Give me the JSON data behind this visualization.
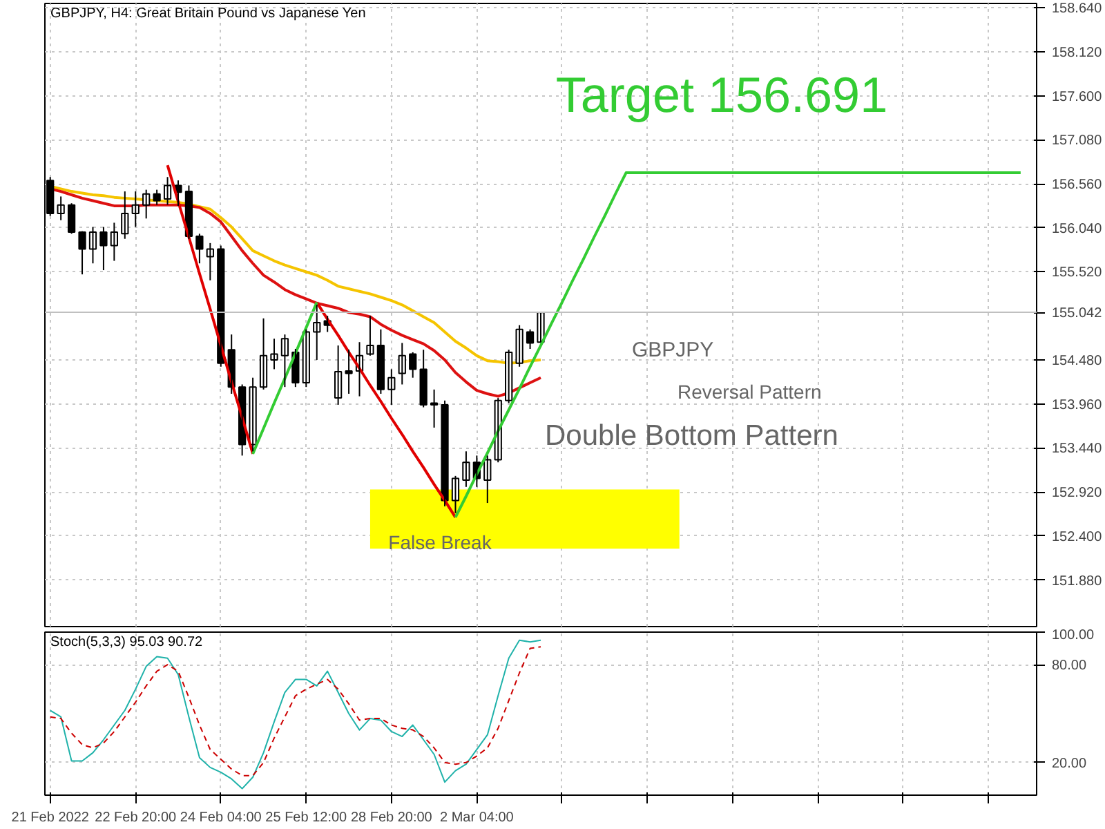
{
  "chart_data": [
    {
      "type": "candlestick",
      "title": "GBPJPY, H4:  Great Britain Pound vs Japanese Yen",
      "categories": [
        null,
        null,
        null,
        null,
        null,
        null,
        null,
        null,
        null,
        null,
        null,
        null,
        null,
        null,
        null,
        null,
        null,
        null,
        null,
        null,
        null,
        null,
        null,
        null,
        null,
        null,
        null,
        null,
        null,
        null,
        null,
        null,
        null,
        null,
        null,
        null,
        null,
        null,
        null,
        null,
        null,
        null,
        null,
        null,
        null,
        null,
        null,
        null,
        null,
        null,
        null,
        null,
        null,
        null,
        null,
        null,
        null,
        null,
        null,
        null,
        null,
        null,
        null,
        null,
        null,
        null,
        null,
        null,
        null,
        null,
        null,
        null,
        null,
        null,
        null,
        null,
        null,
        null,
        null,
        null,
        null,
        null,
        null,
        null,
        null,
        null,
        null,
        null,
        null,
        null,
        null,
        null,
        null
      ],
      "ohlc": [
        [
          156.6,
          156.64,
          156.18,
          156.21
        ],
        [
          156.21,
          156.41,
          156.13,
          156.31
        ],
        [
          156.31,
          156.33,
          155.97,
          155.99
        ],
        [
          155.99,
          156.0,
          155.49,
          155.79
        ],
        [
          155.79,
          156.05,
          155.62,
          155.99
        ],
        [
          155.99,
          156.05,
          155.54,
          155.83
        ],
        [
          155.83,
          156.1,
          155.65,
          155.99
        ],
        [
          155.97,
          156.47,
          155.91,
          156.21
        ],
        [
          156.21,
          156.47,
          156.05,
          156.31
        ],
        [
          156.31,
          156.49,
          156.15,
          156.44
        ],
        [
          156.44,
          156.49,
          156.31,
          156.36
        ],
        [
          156.38,
          156.64,
          156.31,
          156.54
        ],
        [
          156.54,
          156.6,
          156.3,
          156.46
        ],
        [
          156.47,
          156.54,
          155.91,
          155.94
        ],
        [
          155.94,
          155.97,
          155.62,
          155.79
        ],
        [
          155.7,
          155.86,
          155.42,
          155.79
        ],
        [
          155.79,
          155.83,
          154.4,
          154.44
        ],
        [
          154.6,
          154.78,
          154.08,
          154.16
        ],
        [
          154.16,
          154.19,
          153.35,
          153.48
        ],
        [
          153.48,
          154.27,
          153.4,
          154.16
        ],
        [
          154.16,
          154.97,
          154.13,
          154.53
        ],
        [
          154.48,
          154.73,
          154.37,
          154.55
        ],
        [
          154.53,
          154.78,
          154.16,
          154.73
        ],
        [
          154.57,
          154.61,
          154.16,
          154.21
        ],
        [
          154.21,
          154.84,
          154.16,
          154.81
        ],
        [
          154.81,
          155.13,
          154.48,
          154.92
        ],
        [
          154.94,
          155.0,
          154.81,
          154.89
        ],
        [
          154.03,
          154.65,
          153.95,
          154.34
        ],
        [
          154.35,
          154.6,
          154.08,
          154.32
        ],
        [
          154.35,
          154.69,
          154.05,
          154.53
        ],
        [
          154.55,
          155.0,
          154.53,
          154.65
        ],
        [
          154.65,
          154.84,
          154.08,
          154.13
        ],
        [
          154.13,
          154.37,
          153.95,
          154.27
        ],
        [
          154.32,
          154.68,
          154.19,
          154.53
        ],
        [
          154.55,
          154.57,
          154.27,
          154.37
        ],
        [
          154.37,
          154.6,
          153.92,
          153.95
        ],
        [
          153.97,
          154.13,
          153.68,
          153.95
        ],
        [
          153.95,
          154.0,
          152.75,
          152.82
        ],
        [
          152.82,
          153.11,
          152.67,
          153.08
        ],
        [
          153.06,
          153.4,
          152.98,
          153.27
        ],
        [
          153.27,
          153.35,
          152.98,
          153.08
        ],
        [
          153.06,
          153.35,
          152.79,
          153.3
        ],
        [
          153.3,
          154.03,
          153.27,
          154.0
        ],
        [
          154.0,
          154.6,
          153.97,
          154.57
        ],
        [
          154.44,
          154.89,
          154.4,
          154.84
        ],
        [
          154.81,
          154.84,
          154.61,
          154.68
        ],
        [
          154.69,
          155.05,
          154.69,
          155.04
        ],
        null,
        null,
        null,
        null,
        null,
        null,
        null,
        null,
        null,
        null,
        null,
        null,
        null,
        null,
        null,
        null,
        null,
        null,
        null,
        null,
        null,
        null,
        null,
        null,
        null,
        null,
        null,
        null,
        null,
        null,
        null,
        null,
        null,
        null,
        null,
        null,
        null,
        null,
        null,
        null,
        null,
        null,
        null,
        null,
        null,
        null
      ],
      "series": [
        {
          "type": "area",
          "color": "#ffff00",
          "values": [
            null,
            null,
            null,
            null,
            null,
            null,
            null,
            null,
            null,
            null,
            null,
            null,
            null,
            null,
            null,
            null,
            null,
            null,
            null,
            null,
            null,
            null,
            null,
            null,
            null,
            null,
            null,
            null,
            null,
            null,
            null,
            null,
            null,
            null,
            null,
            null,
            null,
            null,
            null,
            null,
            null,
            null,
            null,
            null,
            null,
            null,
            null,
            null,
            null,
            null,
            null,
            null,
            null,
            null,
            null,
            null,
            null,
            null,
            null,
            null,
            null,
            null,
            null,
            null,
            null,
            null,
            null,
            null,
            null,
            null,
            null,
            null,
            null,
            null,
            null,
            null,
            null,
            null,
            null,
            null,
            null,
            null,
            null,
            null,
            null,
            null,
            null,
            null,
            null,
            null,
            null,
            null,
            null
          ],
          "lower": [
            null,
            null,
            null,
            null,
            null,
            null,
            null,
            null,
            null,
            null,
            null,
            null,
            null,
            null,
            null,
            null,
            null,
            null,
            null,
            null,
            null,
            null,
            null,
            null,
            null,
            null,
            null,
            null,
            null,
            null,
            152.25,
            152.25,
            152.25,
            152.25,
            152.25,
            152.25,
            152.25,
            152.25,
            152.25,
            152.25,
            152.25,
            152.25,
            152.25,
            152.25,
            152.25,
            152.25,
            152.25,
            152.25,
            152.25,
            152.25,
            152.25,
            152.25,
            152.25,
            152.25,
            152.25,
            152.25,
            152.25,
            152.25,
            152.25,
            152.25,
            null,
            null,
            null,
            null,
            null,
            null,
            null,
            null,
            null,
            null,
            null,
            null,
            null,
            null,
            null,
            null,
            null,
            null,
            null,
            null,
            null,
            null,
            null,
            null,
            null,
            null,
            null,
            null,
            null,
            null,
            null,
            null,
            null
          ],
          "upper": [
            null,
            null,
            null,
            null,
            null,
            null,
            null,
            null,
            null,
            null,
            null,
            null,
            null,
            null,
            null,
            null,
            null,
            null,
            null,
            null,
            null,
            null,
            null,
            null,
            null,
            null,
            null,
            null,
            null,
            null,
            152.95,
            152.95,
            152.95,
            152.95,
            152.95,
            152.95,
            152.95,
            152.95,
            152.95,
            152.95,
            152.95,
            152.95,
            152.95,
            152.95,
            152.95,
            152.95,
            152.95,
            152.95,
            152.95,
            152.95,
            152.95,
            152.95,
            152.95,
            152.95,
            152.95,
            152.95,
            152.95,
            152.95,
            152.95,
            152.95,
            null,
            null,
            null,
            null,
            null,
            null,
            null,
            null,
            null,
            null,
            null,
            null,
            null,
            null,
            null,
            null,
            null,
            null,
            null,
            null,
            null,
            null,
            null,
            null,
            null,
            null,
            null,
            null,
            null,
            null,
            null,
            null,
            null
          ]
        },
        {
          "type": "line",
          "color": "#f5c400",
          "values": [
            156.53,
            156.5,
            156.47,
            156.45,
            156.43,
            156.42,
            156.4,
            156.39,
            156.38,
            156.37,
            156.36,
            156.35,
            156.34,
            156.32,
            156.29,
            156.26,
            156.16,
            156.05,
            155.91,
            155.77,
            155.71,
            155.65,
            155.6,
            155.56,
            155.52,
            155.48,
            155.42,
            155.35,
            155.32,
            155.29,
            155.26,
            155.22,
            155.18,
            155.13,
            155.06,
            154.99,
            154.92,
            154.81,
            154.7,
            154.62,
            154.53,
            154.47,
            154.46,
            154.44,
            154.45,
            154.47,
            154.48,
            null,
            null,
            null,
            null,
            null,
            null,
            null,
            null,
            null,
            null,
            null,
            null,
            null,
            null,
            null,
            null,
            null,
            null,
            null,
            null,
            null,
            null,
            null,
            null,
            null,
            null,
            null,
            null,
            null,
            null,
            null,
            null,
            null,
            null,
            null,
            null,
            null,
            null,
            null,
            null,
            null,
            null,
            null,
            null,
            null,
            null
          ]
        },
        {
          "type": "line",
          "color": "#dd1111",
          "values": [
            156.5,
            156.47,
            156.43,
            156.39,
            156.36,
            156.33,
            156.3,
            156.3,
            156.3,
            156.31,
            156.31,
            156.31,
            156.31,
            156.3,
            156.28,
            156.21,
            156.11,
            155.94,
            155.77,
            155.62,
            155.48,
            155.4,
            155.31,
            155.25,
            155.2,
            155.15,
            155.12,
            155.09,
            155.04,
            155.02,
            154.99,
            154.9,
            154.83,
            154.77,
            154.72,
            154.67,
            154.59,
            154.48,
            154.33,
            154.22,
            154.12,
            154.08,
            154.05,
            154.09,
            154.15,
            154.21,
            154.27,
            null,
            null,
            null,
            null,
            null,
            null,
            null,
            null,
            null,
            null,
            null,
            null,
            null,
            null,
            null,
            null,
            null,
            null,
            null,
            null,
            null,
            null,
            null,
            null,
            null,
            null,
            null,
            null,
            null,
            null,
            null,
            null,
            null,
            null,
            null,
            null,
            null,
            null,
            null,
            null,
            null,
            null,
            null,
            null,
            null,
            null
          ]
        },
        {
          "type": "line",
          "color": "#e00000",
          "values": [
            null,
            null,
            null,
            null,
            null,
            null,
            null,
            null,
            null,
            null,
            null,
            156.78,
            156.35,
            155.93,
            155.5,
            155.08,
            154.65,
            154.22,
            153.8,
            153.37,
            null,
            null,
            null,
            null,
            null,
            155.16,
            154.96,
            154.77,
            154.57,
            154.38,
            154.18,
            153.99,
            153.79,
            153.6,
            153.4,
            153.21,
            153.01,
            152.82,
            152.62,
            null,
            null,
            null,
            null,
            null,
            null,
            null,
            null,
            null,
            null,
            null,
            null,
            null,
            null,
            null,
            null,
            null,
            null,
            null,
            null,
            null,
            null,
            null,
            null,
            null,
            null,
            null,
            null,
            null,
            null,
            null,
            null,
            null,
            null,
            null,
            null,
            null,
            null,
            null,
            null,
            null,
            null,
            null,
            null,
            null,
            null,
            null,
            null,
            null,
            null,
            null,
            null,
            null,
            null
          ]
        },
        {
          "type": "line",
          "color": "#33cc33",
          "values": [
            null,
            null,
            null,
            null,
            null,
            null,
            null,
            null,
            null,
            null,
            null,
            null,
            null,
            null,
            null,
            null,
            null,
            null,
            null,
            153.37,
            153.67,
            153.97,
            154.26,
            154.56,
            154.86,
            155.16,
            null,
            null,
            null,
            null,
            null,
            null,
            null,
            null,
            null,
            null,
            null,
            null,
            152.62,
            152.87,
            153.13,
            153.38,
            153.64,
            153.89,
            154.14,
            154.4,
            154.65,
            154.91,
            155.16,
            155.42,
            155.67,
            155.93,
            156.18,
            156.44,
            156.69,
            156.69,
            156.69,
            156.69,
            156.69,
            156.69,
            156.69,
            156.69,
            156.69,
            156.69,
            156.69,
            156.69,
            156.69,
            156.69,
            156.69,
            156.69,
            156.69,
            156.69,
            156.69,
            156.69,
            156.69,
            156.69,
            156.69,
            156.69,
            156.69,
            156.69,
            156.69,
            156.69,
            156.69,
            156.69,
            156.69,
            156.69,
            156.69,
            156.69,
            156.69,
            156.69,
            156.69,
            156.69,
            null
          ]
        }
      ],
      "annotations": [
        "Target 156.691",
        "False Break",
        "GBPJPY",
        "Reversal Pattern",
        "Double Bottom Pattern"
      ],
      "ref_lines": [
        {
          "axis": "y",
          "value": 155.042,
          "label": "155.042",
          "color": "#c0c0c0"
        }
      ],
      "ylim": [
        151.33,
        158.69
      ],
      "yticks": [
        {
          "value": 158.64,
          "label": "158.640"
        },
        {
          "value": 158.12,
          "label": "158.120"
        },
        {
          "value": 157.6,
          "label": "157.600"
        },
        {
          "value": 157.08,
          "label": "157.080"
        },
        {
          "value": 156.56,
          "label": "156.560"
        },
        {
          "value": 156.04,
          "label": "156.040"
        },
        {
          "value": 155.52,
          "label": "155.520"
        },
        {
          "value": 154.48,
          "label": "154.480"
        },
        {
          "value": 153.96,
          "label": "153.960"
        },
        {
          "value": 153.44,
          "label": "153.440"
        },
        {
          "value": 152.92,
          "label": "152.920"
        },
        {
          "value": 152.4,
          "label": "152.400"
        },
        {
          "value": 151.88,
          "label": "151.880"
        }
      ],
      "tick_labels": "y",
      "grid": true
    },
    {
      "type": "line",
      "title": "Stoch(5,3,3) 95.03 90.72",
      "categories": [
        "21 Feb 2022",
        null,
        null,
        null,
        null,
        null,
        null,
        null,
        "22 Feb 20:00",
        null,
        null,
        null,
        null,
        null,
        null,
        null,
        "24 Feb 04:00",
        null,
        null,
        null,
        null,
        null,
        null,
        null,
        "25 Feb 12:00",
        null,
        null,
        null,
        null,
        null,
        null,
        null,
        "28 Feb 20:00",
        null,
        null,
        null,
        null,
        null,
        null,
        null,
        "2 Mar 04:00",
        null,
        null,
        null,
        null,
        null,
        null,
        null,
        null,
        null,
        null,
        null,
        null,
        null,
        null,
        null,
        null,
        null,
        null,
        null,
        null,
        null,
        null,
        null,
        null,
        null,
        null,
        null,
        null,
        null,
        null,
        null,
        null,
        null,
        null,
        null,
        null,
        null,
        null,
        null,
        null,
        null,
        null,
        null,
        null,
        null,
        null,
        null,
        null,
        null,
        null,
        null,
        null
      ],
      "series": [
        {
          "color": "#20b2aa",
          "values": [
            52,
            48,
            21,
            21,
            26,
            34,
            43,
            52,
            65,
            79,
            85,
            84,
            74,
            48,
            23,
            17,
            14,
            10,
            4,
            11,
            26,
            45,
            63,
            71,
            71,
            67,
            76,
            63,
            50,
            40,
            47,
            46,
            39,
            36,
            43,
            34,
            25,
            8,
            15,
            19,
            28,
            37,
            61,
            84,
            95,
            94,
            95,
            null,
            null,
            null,
            null,
            null,
            null,
            null,
            null,
            null,
            null,
            null,
            null,
            null,
            null,
            null,
            null,
            null,
            null,
            null,
            null,
            null,
            null,
            null,
            null,
            null,
            null,
            null,
            null,
            null,
            null,
            null,
            null,
            null,
            null,
            null,
            null,
            null,
            null,
            null,
            null,
            null,
            null,
            null,
            null,
            null,
            null
          ]
        },
        {
          "color": "#cc0000",
          "line_style": "dashed",
          "values": [
            48,
            47,
            38,
            31,
            29,
            32,
            39,
            48,
            57,
            67,
            76,
            80,
            76,
            60,
            43,
            28,
            22,
            16,
            12,
            12,
            20,
            35,
            48,
            61,
            65,
            68,
            71,
            65,
            56,
            46,
            47,
            47,
            43,
            41,
            40,
            36,
            29,
            20,
            19,
            20,
            24,
            29,
            41,
            58,
            75,
            90,
            91,
            null,
            null,
            null,
            null,
            null,
            null,
            null,
            null,
            null,
            null,
            null,
            null,
            null,
            null,
            null,
            null,
            null,
            null,
            null,
            null,
            null,
            null,
            null,
            null,
            null,
            null,
            null,
            null,
            null,
            null,
            null,
            null,
            null,
            null,
            null,
            null,
            null,
            null,
            null,
            null,
            null,
            null,
            null,
            null,
            null,
            null
          ]
        }
      ],
      "ylim": [
        0,
        100
      ],
      "yticks": [
        {
          "value": 20,
          "label": "20.00"
        },
        {
          "value": 80,
          "label": "80.00"
        },
        {
          "value": 100,
          "label": "100.00"
        }
      ],
      "grid": true
    }
  ]
}
